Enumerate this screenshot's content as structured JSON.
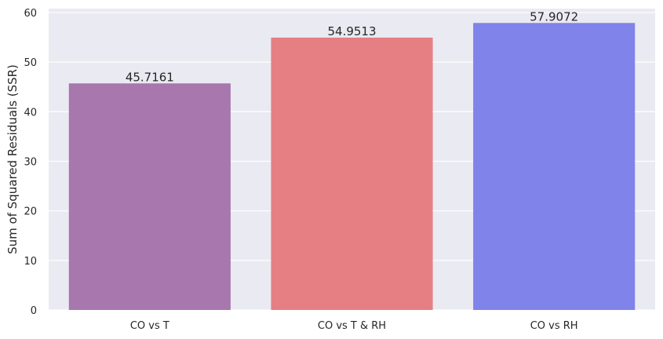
{
  "chart_data": {
    "type": "bar",
    "title": "",
    "xlabel": "",
    "ylabel": "Sum of Squared Residuals (SSR)",
    "categories": [
      "CO vs T",
      "CO vs T & RH",
      "CO vs RH"
    ],
    "values": [
      45.7161,
      54.9513,
      57.9072
    ],
    "data_labels": [
      "45.7161",
      "54.9513",
      "57.9072"
    ],
    "ylim": [
      0,
      60.8
    ],
    "yticks": [
      0,
      10,
      20,
      30,
      40,
      50,
      60
    ],
    "grid": true,
    "colors": [
      "#a777ad",
      "#e57f83",
      "#8083e9"
    ],
    "background_color": "#eaeaf2",
    "grid_color": "#ffffff"
  }
}
